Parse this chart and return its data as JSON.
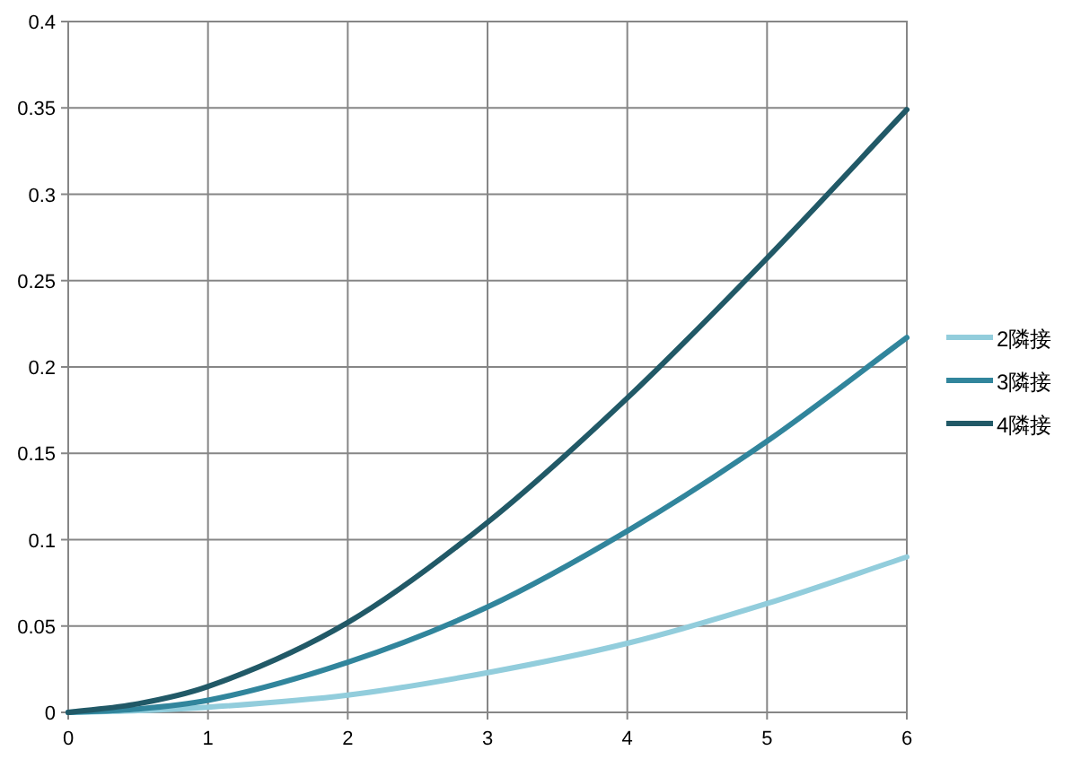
{
  "chart_data": {
    "type": "line",
    "x": [
      0,
      0.5,
      1,
      2,
      3,
      4,
      5,
      6
    ],
    "series": [
      {
        "name": "2隣接",
        "color": "#92cddc",
        "values": [
          0,
          0.001,
          0.003,
          0.01,
          0.023,
          0.04,
          0.063,
          0.09
        ]
      },
      {
        "name": "3隣接",
        "color": "#31859c",
        "values": [
          0,
          0.002,
          0.007,
          0.029,
          0.061,
          0.105,
          0.157,
          0.217
        ]
      },
      {
        "name": "4隣接",
        "color": "#215967",
        "values": [
          0,
          0.005,
          0.015,
          0.052,
          0.11,
          0.182,
          0.263,
          0.349
        ]
      }
    ],
    "xlim": [
      0,
      6
    ],
    "xticks": [
      0,
      1,
      2,
      3,
      4,
      5,
      6
    ],
    "ylim": [
      0,
      0.4
    ],
    "yticks": [
      0,
      0.05,
      0.1,
      0.15,
      0.2,
      0.25,
      0.3,
      0.35,
      0.4
    ],
    "grid": true,
    "legend": "right",
    "marker": "none",
    "line_style": "solid"
  }
}
